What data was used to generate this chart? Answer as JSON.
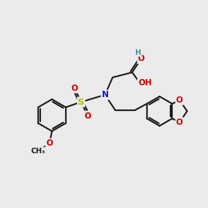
{
  "bg_color": "#ebebeb",
  "bond_color": "#1a1a1a",
  "bond_width": 1.6,
  "dbl_sep": 0.09,
  "atom_colors": {
    "O": "#cc0000",
    "N": "#1414cc",
    "S": "#b8b800",
    "H": "#4a9090",
    "C": "#1a1a1a"
  },
  "fs": 8.5,
  "fs_small": 7.0
}
